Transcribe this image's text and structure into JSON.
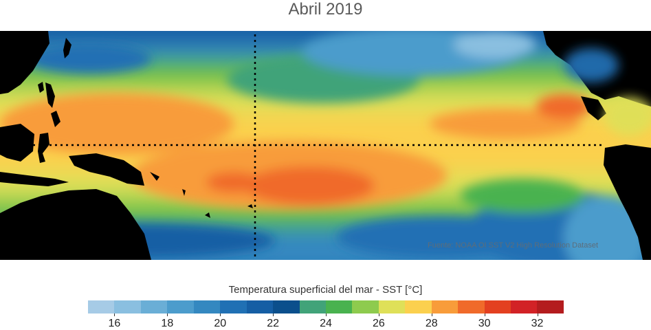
{
  "title": "Abril 2019",
  "source": "Fuente: NOAA OI SST V2 High Resolution Dataset",
  "colorbar": {
    "label": "Temperatura superficial del mar - SST  [°C]",
    "range": [
      15,
      33
    ],
    "colors": [
      "#a6cbe6",
      "#8abfe0",
      "#6aaed6",
      "#4c9ccc",
      "#3488c0",
      "#2070b4",
      "#155ea4",
      "#0b4f8c",
      "#41a379",
      "#49b24f",
      "#8ecb4e",
      "#dfe058",
      "#fbd04e",
      "#f89c3a",
      "#f06a2a",
      "#e34020",
      "#d22226",
      "#b41c1e"
    ],
    "ticks": [
      16,
      18,
      20,
      22,
      24,
      26,
      28,
      30,
      32
    ]
  }
}
